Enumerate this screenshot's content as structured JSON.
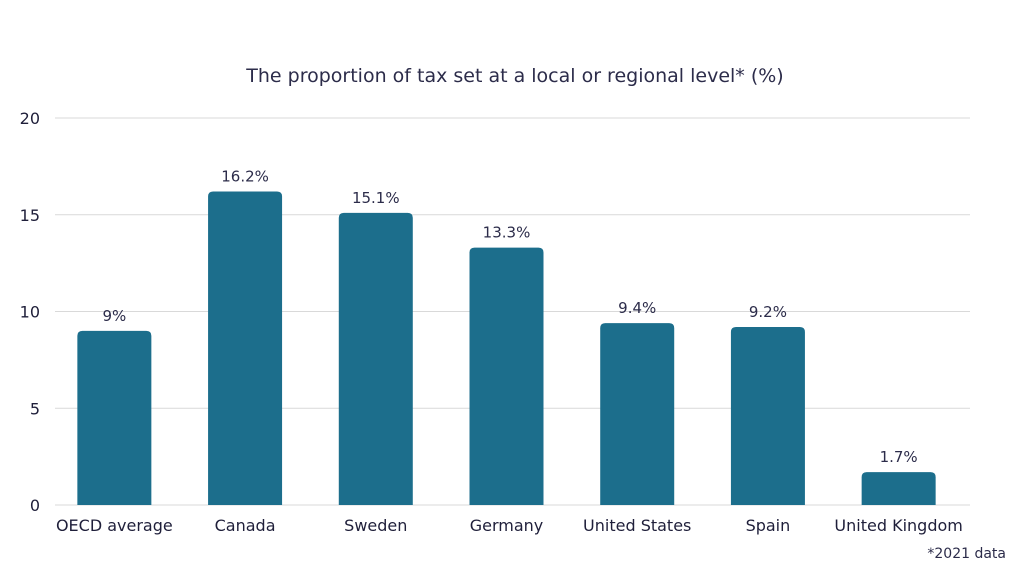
{
  "chart_data": {
    "type": "bar",
    "title": "The proportion of tax set at a local or regional level* (%)",
    "categories": [
      "OECD average",
      "Canada",
      "Sweden",
      "Germany",
      "United States",
      "Spain",
      "United Kingdom"
    ],
    "values": [
      9,
      16.2,
      15.1,
      13.3,
      9.4,
      9.2,
      1.7
    ],
    "data_labels": [
      "9%",
      "16.2%",
      "15.1%",
      "13.3%",
      "9.4%",
      "9.2%",
      "1.7%"
    ],
    "ylim": [
      0,
      20
    ],
    "yticks": [
      0,
      5,
      10,
      15,
      20
    ],
    "grid": true,
    "legend": false,
    "bar_color": "#1c6e8c",
    "footnote": "*2021 data"
  }
}
